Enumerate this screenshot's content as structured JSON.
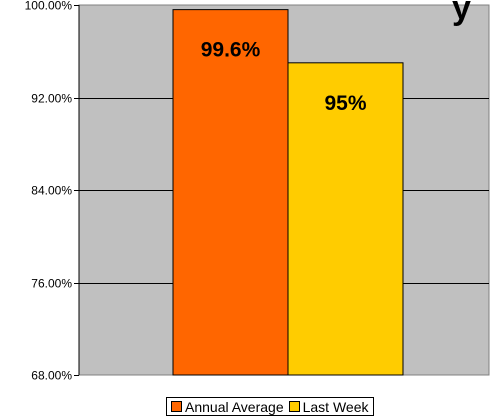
{
  "chart_data": {
    "type": "bar",
    "title_fragment": "y",
    "categories": [
      ""
    ],
    "series": [
      {
        "name": "Annual Average",
        "values": [
          99.6
        ],
        "data_label": "99.6%",
        "color": "#ff6600"
      },
      {
        "name": "Last Week",
        "values": [
          95
        ],
        "data_label": "95%",
        "color": "#ffcc00"
      }
    ],
    "ylim": [
      68,
      100
    ],
    "yticks": [
      68,
      76,
      84,
      92,
      100
    ],
    "ytick_labels": [
      "68.00%",
      "76.00%",
      "84.00%",
      "92.00%",
      "100.00%"
    ],
    "grid": true,
    "plot_background": "#c0c0c0",
    "legend_position": "bottom"
  }
}
